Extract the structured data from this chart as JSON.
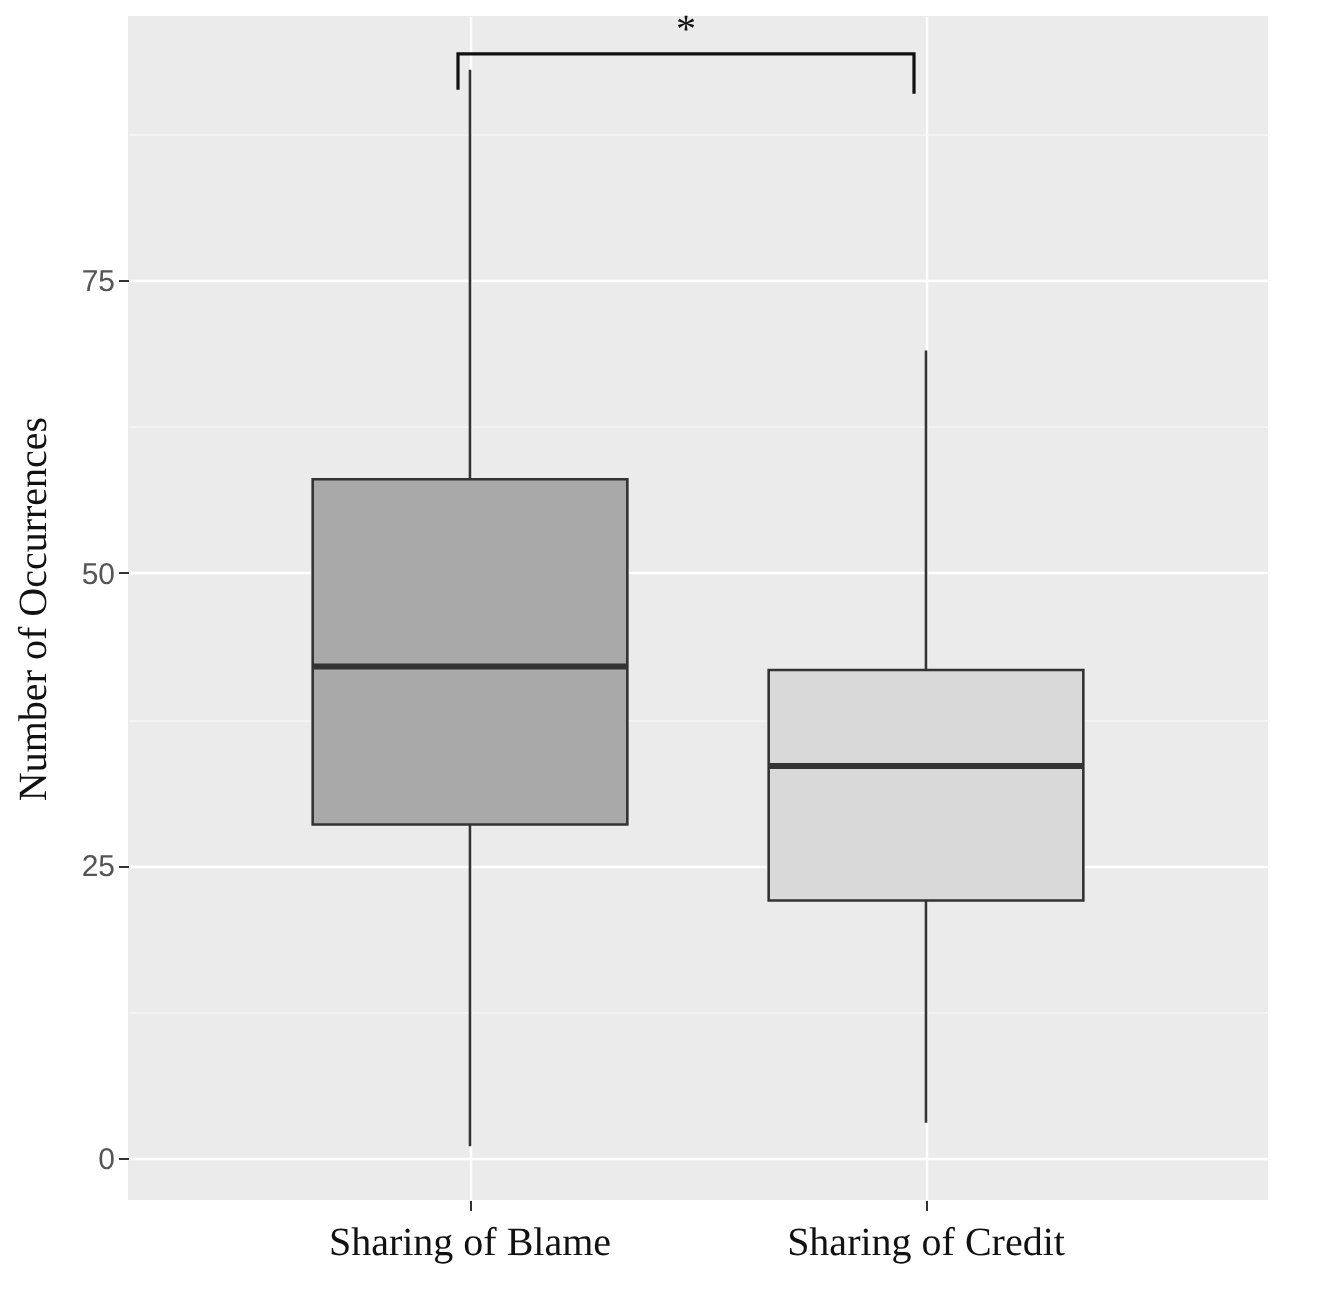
{
  "chart_data": {
    "type": "box",
    "ylabel": "Number of Occurrences",
    "categories": [
      "Sharing of Blame",
      "Sharing of Credit"
    ],
    "boxes": [
      {
        "low": 1,
        "q1": 28.5,
        "median": 42,
        "q3": 58,
        "high": 93
      },
      {
        "low": 3,
        "q1": 22,
        "median": 33.5,
        "q3": 41.7,
        "high": 69
      }
    ],
    "colors": [
      "#a9a9a9",
      "#d9d9d9"
    ],
    "ylim": [
      -3.6,
      97.6
    ],
    "yticks": [
      0,
      {
        "value": 12.5,
        "label": null
      },
      25,
      {
        "value": 37.5,
        "label": null
      },
      50,
      {
        "value": 62.5,
        "label": null
      },
      75,
      {
        "value": 87.5,
        "label": null
      }
    ],
    "grid": true,
    "annotations": [
      "*"
    ]
  }
}
